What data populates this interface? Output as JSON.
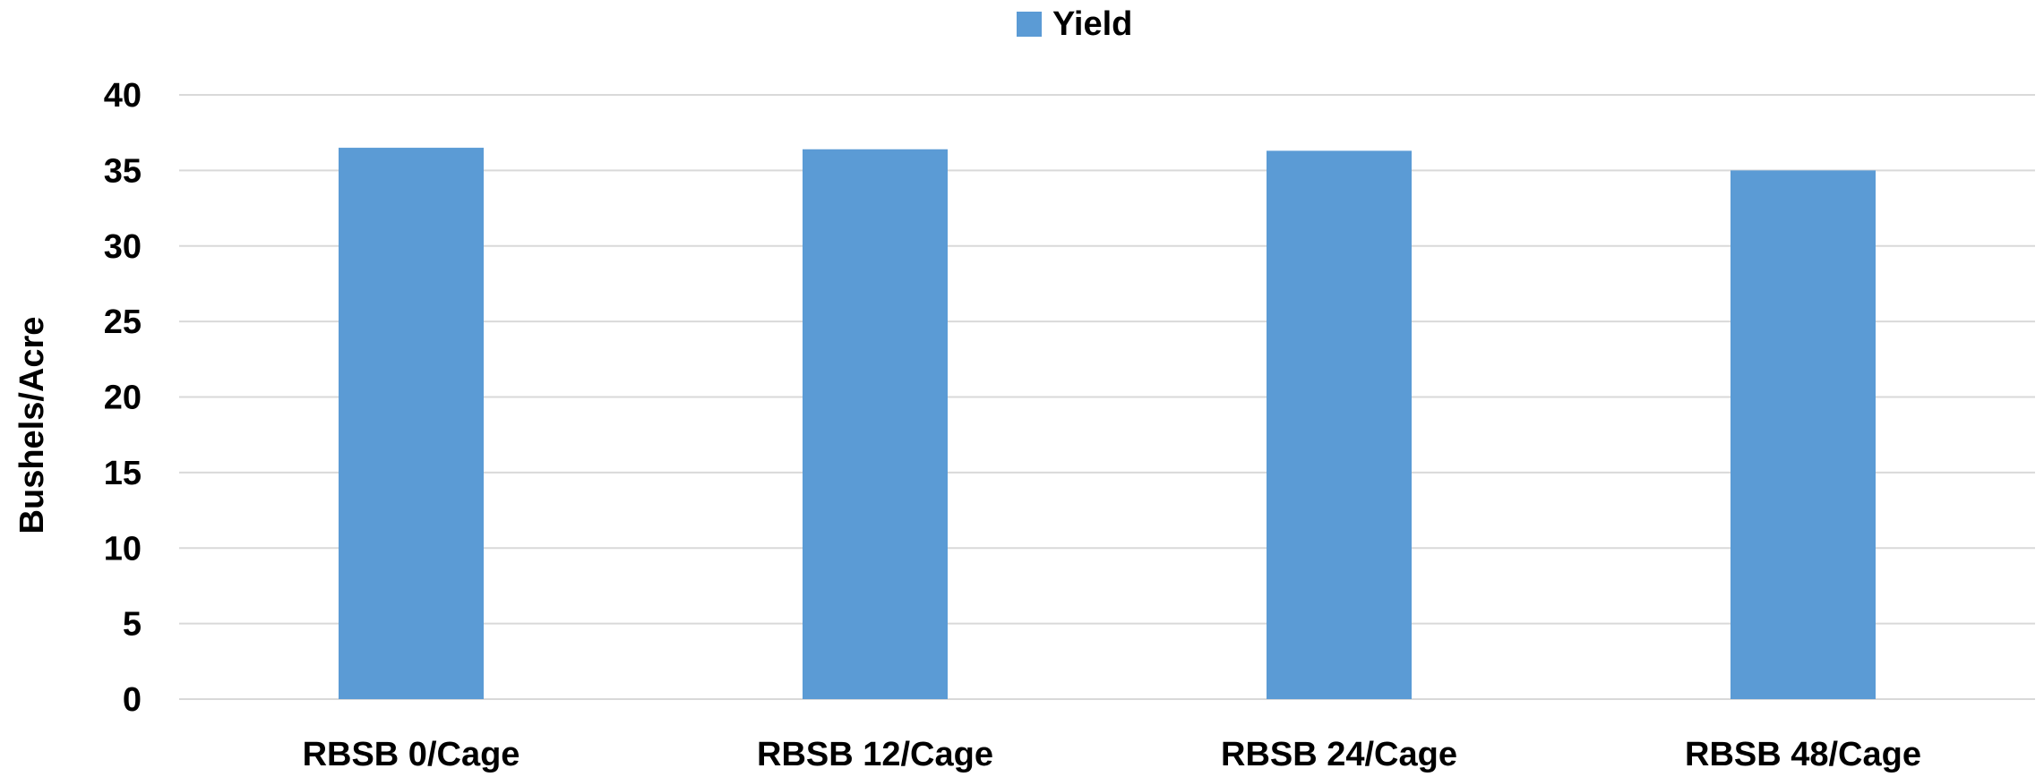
{
  "chart_data": {
    "type": "bar",
    "categories": [
      "RBSB 0/Cage",
      "RBSB 12/Cage",
      "RBSB 24/Cage",
      "RBSB 48/Cage"
    ],
    "series": [
      {
        "name": "Yield",
        "values": [
          36.5,
          36.4,
          36.3,
          35.0
        ],
        "color": "#5b9bd5"
      }
    ],
    "ylabel": "Bushels/Acre",
    "xlabel": "",
    "ylim": [
      0,
      40
    ],
    "yticks": [
      0,
      5,
      10,
      15,
      20,
      25,
      30,
      35,
      40
    ],
    "grid": true,
    "legend_position": "top"
  }
}
